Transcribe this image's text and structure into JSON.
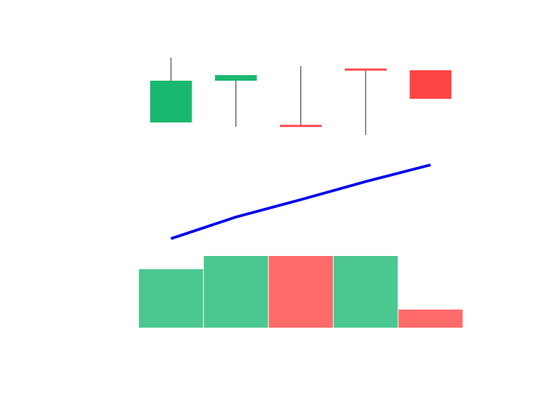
{
  "chart_data": [
    {
      "type": "candlestick",
      "open": [
        2.4,
        8.4,
        1.9,
        10,
        9.9
      ],
      "high": [
        11.7,
        9.2,
        10.5,
        10,
        9.9
      ],
      "low": [
        2.4,
        1.8,
        1.8,
        0.6,
        5.8
      ],
      "close": [
        8.4,
        9.2,
        1.8,
        9.9,
        5.8
      ],
      "up_color": "#19b870",
      "down_color": "#ff4444",
      "wick_color": "#666666",
      "ylim": [
        0,
        12
      ]
    },
    {
      "type": "line",
      "values": [
        1.7,
        4.8,
        7.3,
        9.9,
        12.3
      ],
      "color": "#0000ee",
      "ylim": [
        0,
        14
      ]
    },
    {
      "type": "bar",
      "values": [
        8.4,
        10.3,
        10.3,
        10.3,
        2.6
      ],
      "colors": [
        "#4bc790",
        "#4bc790",
        "#ff6b6b",
        "#4bc790",
        "#ff6b6b"
      ],
      "ylim": [
        0,
        12
      ]
    }
  ]
}
